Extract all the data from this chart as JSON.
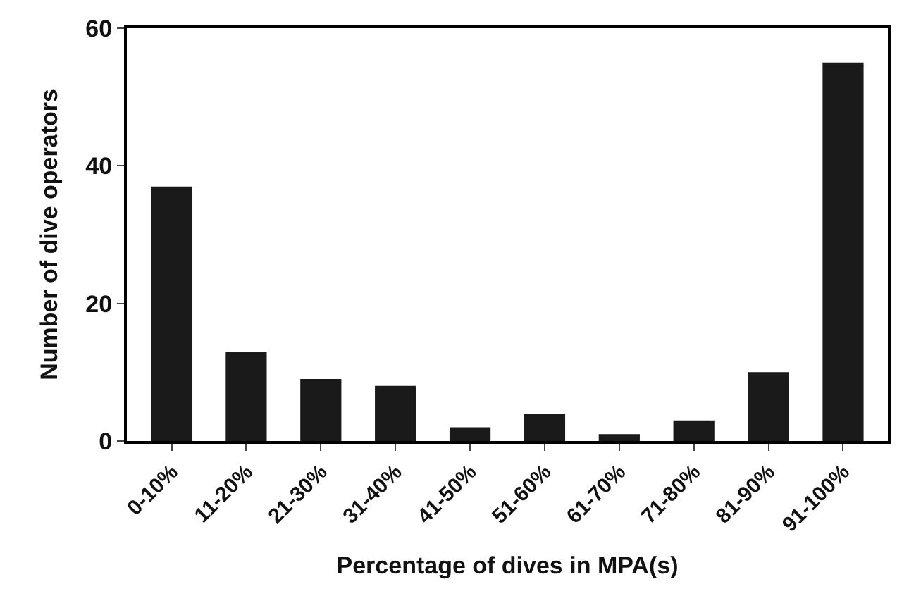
{
  "chart_data": {
    "type": "bar",
    "xlabel": "Percentage of dives in MPA(s)",
    "ylabel": "Number of dive operators",
    "categories": [
      "0-10%",
      "11-20%",
      "21-30%",
      "31-40%",
      "41-50%",
      "51-60%",
      "61-70%",
      "71-80%",
      "81-90%",
      "91-100%"
    ],
    "values": [
      37,
      13,
      9,
      8,
      2,
      4,
      1,
      3,
      10,
      55
    ],
    "color": "#1a1a1a",
    "ylim": [
      0,
      60
    ],
    "yticks": [
      0,
      20,
      40,
      60
    ]
  }
}
